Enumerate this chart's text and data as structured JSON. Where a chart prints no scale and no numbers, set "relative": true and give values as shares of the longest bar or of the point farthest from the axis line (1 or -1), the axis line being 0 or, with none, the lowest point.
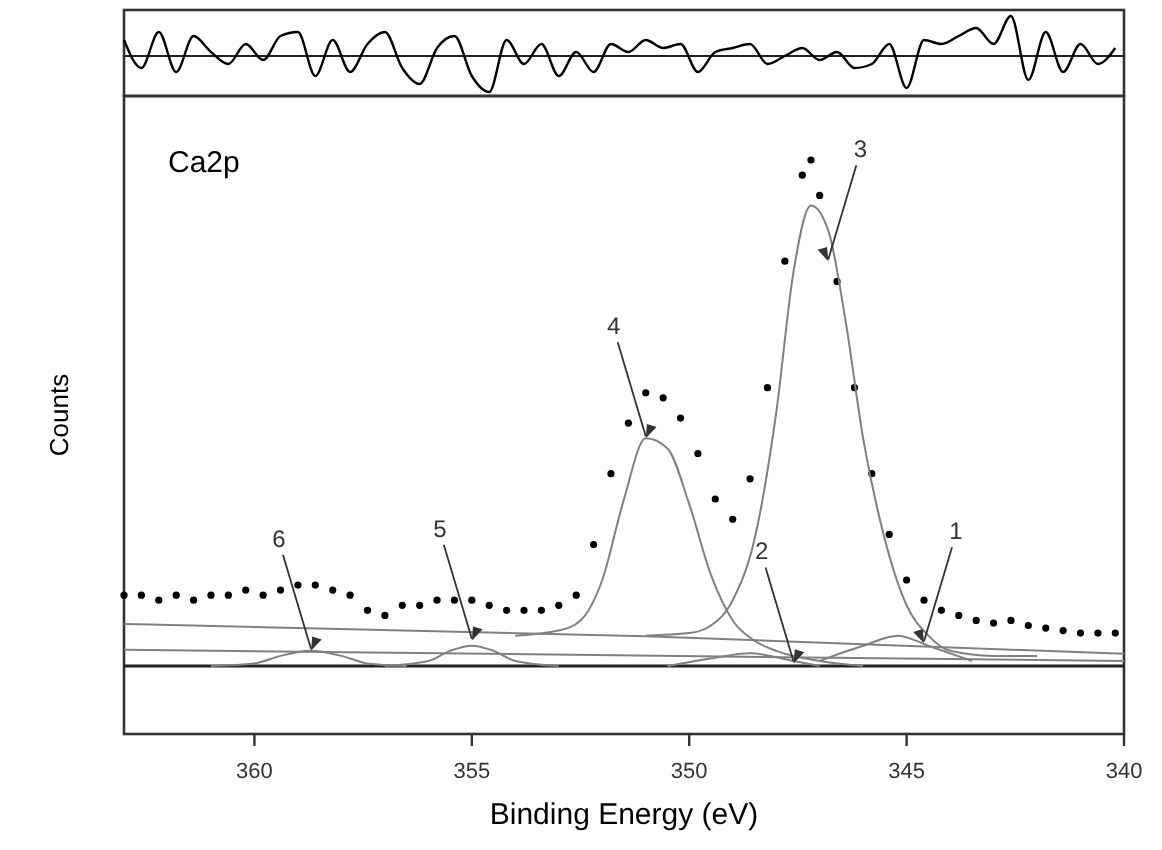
{
  "chart_data": [
    {
      "type": "line",
      "relative": true,
      "xlim": [
        363,
        340
      ],
      "series": [
        {
          "color": "#000000",
          "x": [
            363,
            362.6,
            362.2,
            361.8,
            361.4,
            361,
            360.6,
            360.2,
            359.8,
            359.4,
            359,
            358.6,
            358.2,
            357.8,
            357.4,
            357,
            356.6,
            356.2,
            355.8,
            355.4,
            355,
            354.6,
            354.2,
            353.8,
            353.4,
            353,
            352.6,
            352.2,
            351.8,
            351.4,
            351,
            350.6,
            350.2,
            349.8,
            349.4,
            349,
            348.6,
            348.2,
            347.8,
            347.4,
            347,
            346.6,
            346.2,
            345.8,
            345.4,
            345,
            344.6,
            344.2,
            343.8,
            343.4,
            343,
            342.6,
            342.2,
            341.8,
            341.4,
            341,
            340.6,
            340.2
          ],
          "values": [
            0.4,
            -0.3,
            0.6,
            -0.4,
            0.5,
            0.1,
            -0.2,
            0.3,
            -0.1,
            0.5,
            0.6,
            -0.5,
            0.4,
            -0.4,
            0.3,
            0.6,
            -0.3,
            -0.7,
            0.2,
            0.5,
            -0.5,
            -0.9,
            0.4,
            -0.2,
            0.3,
            -0.5,
            0.1,
            -0.4,
            0.3,
            0.1,
            0.4,
            0.2,
            0.3,
            -0.4,
            0.1,
            0.2,
            0.3,
            -0.2,
            0,
            0.2,
            -0.1,
            0.1,
            -0.3,
            -0.2,
            0.3,
            -0.8,
            0.4,
            0.3,
            0.5,
            0.7,
            0.3,
            1,
            -0.6,
            0.6,
            -0.4,
            0.3,
            -0.2,
            0.2
          ]
        }
      ]
    },
    {
      "type": "scatter",
      "title": "Ca2p",
      "xlabel": "Binding Energy (eV)",
      "ylabel": "Counts",
      "relative": true,
      "xlim": [
        363,
        340
      ],
      "xticks": [
        360,
        355,
        350,
        345,
        340
      ],
      "series": [
        {
          "marker": "circle",
          "color": "#000000",
          "x": [
            363,
            362.6,
            362.2,
            361.8,
            361.4,
            361,
            360.6,
            360.2,
            359.8,
            359.4,
            359,
            358.6,
            358.2,
            357.8,
            357.4,
            357,
            356.6,
            356.2,
            355.8,
            355.4,
            355,
            354.6,
            354.2,
            353.8,
            353.4,
            353,
            352.6,
            352.2,
            351.8,
            351.4,
            351,
            350.6,
            350.2,
            349.8,
            349.4,
            349,
            348.6,
            348.2,
            347.8,
            347.4,
            347.2,
            347,
            346.6,
            346.2,
            345.8,
            345.4,
            345,
            344.6,
            344.2,
            343.8,
            343.4,
            343,
            342.6,
            342.2,
            341.8,
            341.4,
            341,
            340.6,
            340.2
          ],
          "values": [
            0.14,
            0.14,
            0.13,
            0.14,
            0.13,
            0.14,
            0.14,
            0.15,
            0.14,
            0.15,
            0.16,
            0.16,
            0.15,
            0.14,
            0.11,
            0.1,
            0.12,
            0.12,
            0.13,
            0.13,
            0.13,
            0.12,
            0.11,
            0.11,
            0.11,
            0.12,
            0.14,
            0.24,
            0.38,
            0.48,
            0.54,
            0.53,
            0.49,
            0.42,
            0.33,
            0.29,
            0.37,
            0.55,
            0.8,
            0.97,
            1,
            0.93,
            0.76,
            0.55,
            0.38,
            0.26,
            0.17,
            0.13,
            0.11,
            0.1,
            0.09,
            0.085,
            0.09,
            0.08,
            0.075,
            0.07,
            0.065,
            0.065,
            0.065
          ]
        },
        {
          "type": "line",
          "color": "#808080",
          "x": [
            363,
            351,
            340
          ],
          "values": [
            0.083,
            0.059,
            0.024
          ]
        },
        {
          "type": "line",
          "color": "#808080",
          "x": [
            363,
            340
          ],
          "values": [
            0.032,
            0.01
          ]
        },
        {
          "type": "line",
          "color": "#808080",
          "x": [
            361,
            360,
            359.4,
            358.7,
            358,
            357.4,
            356.5
          ],
          "values": [
            0,
            0.005,
            0.02,
            0.03,
            0.02,
            0.005,
            0
          ]
        },
        {
          "type": "line",
          "color": "#808080",
          "x": [
            357,
            356,
            355.5,
            355,
            354.5,
            354,
            353
          ],
          "values": [
            0,
            0.01,
            0.03,
            0.04,
            0.03,
            0.01,
            0
          ]
        },
        {
          "type": "line",
          "color": "#808080",
          "x": [
            354,
            353,
            352.5,
            352,
            351.5,
            351,
            350.5,
            350,
            349.5,
            349,
            348.5,
            348,
            347,
            346
          ],
          "values": [
            0.06,
            0.07,
            0.09,
            0.17,
            0.33,
            0.45,
            0.43,
            0.32,
            0.18,
            0.09,
            0.05,
            0.03,
            0.01,
            0
          ]
        },
        {
          "type": "line",
          "color": "#808080",
          "x": [
            351,
            350,
            349.5,
            349,
            348.5,
            348,
            347.6,
            347.2,
            346.8,
            346.4,
            346,
            345.5,
            345,
            344.5,
            344,
            343,
            342
          ],
          "values": [
            0.06,
            0.065,
            0.08,
            0.13,
            0.25,
            0.5,
            0.78,
            0.91,
            0.86,
            0.68,
            0.45,
            0.25,
            0.12,
            0.06,
            0.03,
            0.02,
            0.02
          ]
        },
        {
          "type": "line",
          "color": "#808080",
          "x": [
            350.5,
            349.5,
            348.6,
            347.6,
            347
          ],
          "values": [
            0,
            0.015,
            0.025,
            0.01,
            0
          ]
        },
        {
          "type": "line",
          "color": "#808080",
          "x": [
            347,
            346,
            345.2,
            344.5,
            343.5
          ],
          "values": [
            0.01,
            0.04,
            0.06,
            0.04,
            0.01
          ]
        }
      ],
      "annotations": [
        {
          "text": "6",
          "x": 358.7,
          "y": 0.03
        },
        {
          "text": "5",
          "x": 355,
          "y": 0.05
        },
        {
          "text": "4",
          "x": 351,
          "y": 0.45
        },
        {
          "text": "3",
          "x": 346.8,
          "y": 0.8
        },
        {
          "text": "2",
          "x": 347.6,
          "y": 0.005
        },
        {
          "text": "1",
          "x": 344.6,
          "y": 0.045
        }
      ]
    }
  ]
}
